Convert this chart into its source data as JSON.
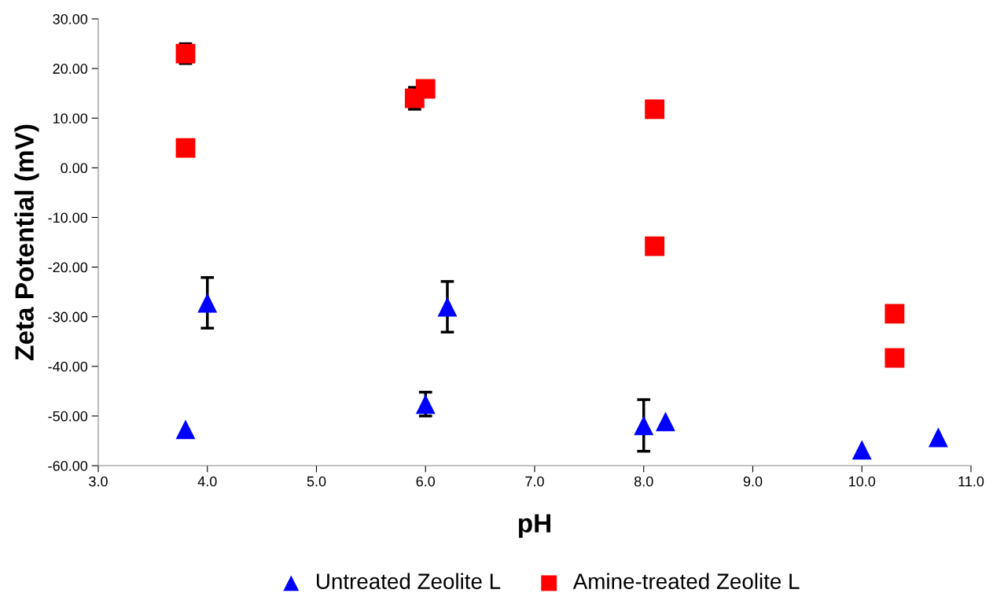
{
  "chart_data": {
    "type": "scatter",
    "xlabel": "pH",
    "ylabel": "Zeta Potential (mV)",
    "xlim": [
      3.0,
      11.0
    ],
    "ylim": [
      -60,
      30
    ],
    "xticks": [
      {
        "value": 3,
        "label": "3.0"
      },
      {
        "value": 4,
        "label": "4.0"
      },
      {
        "value": 5,
        "label": "5.0"
      },
      {
        "value": 6,
        "label": "6.0"
      },
      {
        "value": 7,
        "label": "7.0"
      },
      {
        "value": 8,
        "label": "8.0"
      },
      {
        "value": 9,
        "label": "9.0"
      },
      {
        "value": 10,
        "label": "10.0"
      },
      {
        "value": 11,
        "label": "11.0"
      }
    ],
    "yticks": [
      {
        "value": -60,
        "label": "-60.00"
      },
      {
        "value": -50,
        "label": "-50.00"
      },
      {
        "value": -40,
        "label": "-40.00"
      },
      {
        "value": -30,
        "label": "-30.00"
      },
      {
        "value": -20,
        "label": "-20.00"
      },
      {
        "value": -10,
        "label": "-10.00"
      },
      {
        "value": 0,
        "label": "0.00"
      },
      {
        "value": 10,
        "label": "10.00"
      },
      {
        "value": 20,
        "label": "20.00"
      },
      {
        "value": 30,
        "label": "30.00"
      }
    ],
    "grid": false,
    "legend": "bottom",
    "series": [
      {
        "name": "Untreated Zeolite L",
        "color": "#0000ff",
        "marker": "triangle",
        "x": [
          4.0,
          6.2,
          3.8,
          6.0,
          8.0,
          8.2,
          10.0,
          10.7
        ],
        "values": [
          -27.2,
          -28.0,
          -52.7,
          -47.6,
          -51.9,
          -51.1,
          -56.8,
          -54.3
        ],
        "errors": [
          5.1,
          5.1,
          null,
          2.4,
          5.2,
          null,
          null,
          null
        ]
      },
      {
        "name": "Amine-treated Zeolite L",
        "color": "#ff0000",
        "marker": "square",
        "x": [
          3.8,
          3.8,
          5.9,
          6.0,
          8.1,
          8.1,
          10.3,
          10.3
        ],
        "values": [
          23.0,
          4.0,
          14.0,
          15.9,
          11.8,
          -15.8,
          -29.4,
          -38.3
        ],
        "errors": [
          2.0,
          null,
          2.2,
          null,
          null,
          null,
          null,
          null
        ]
      }
    ]
  }
}
